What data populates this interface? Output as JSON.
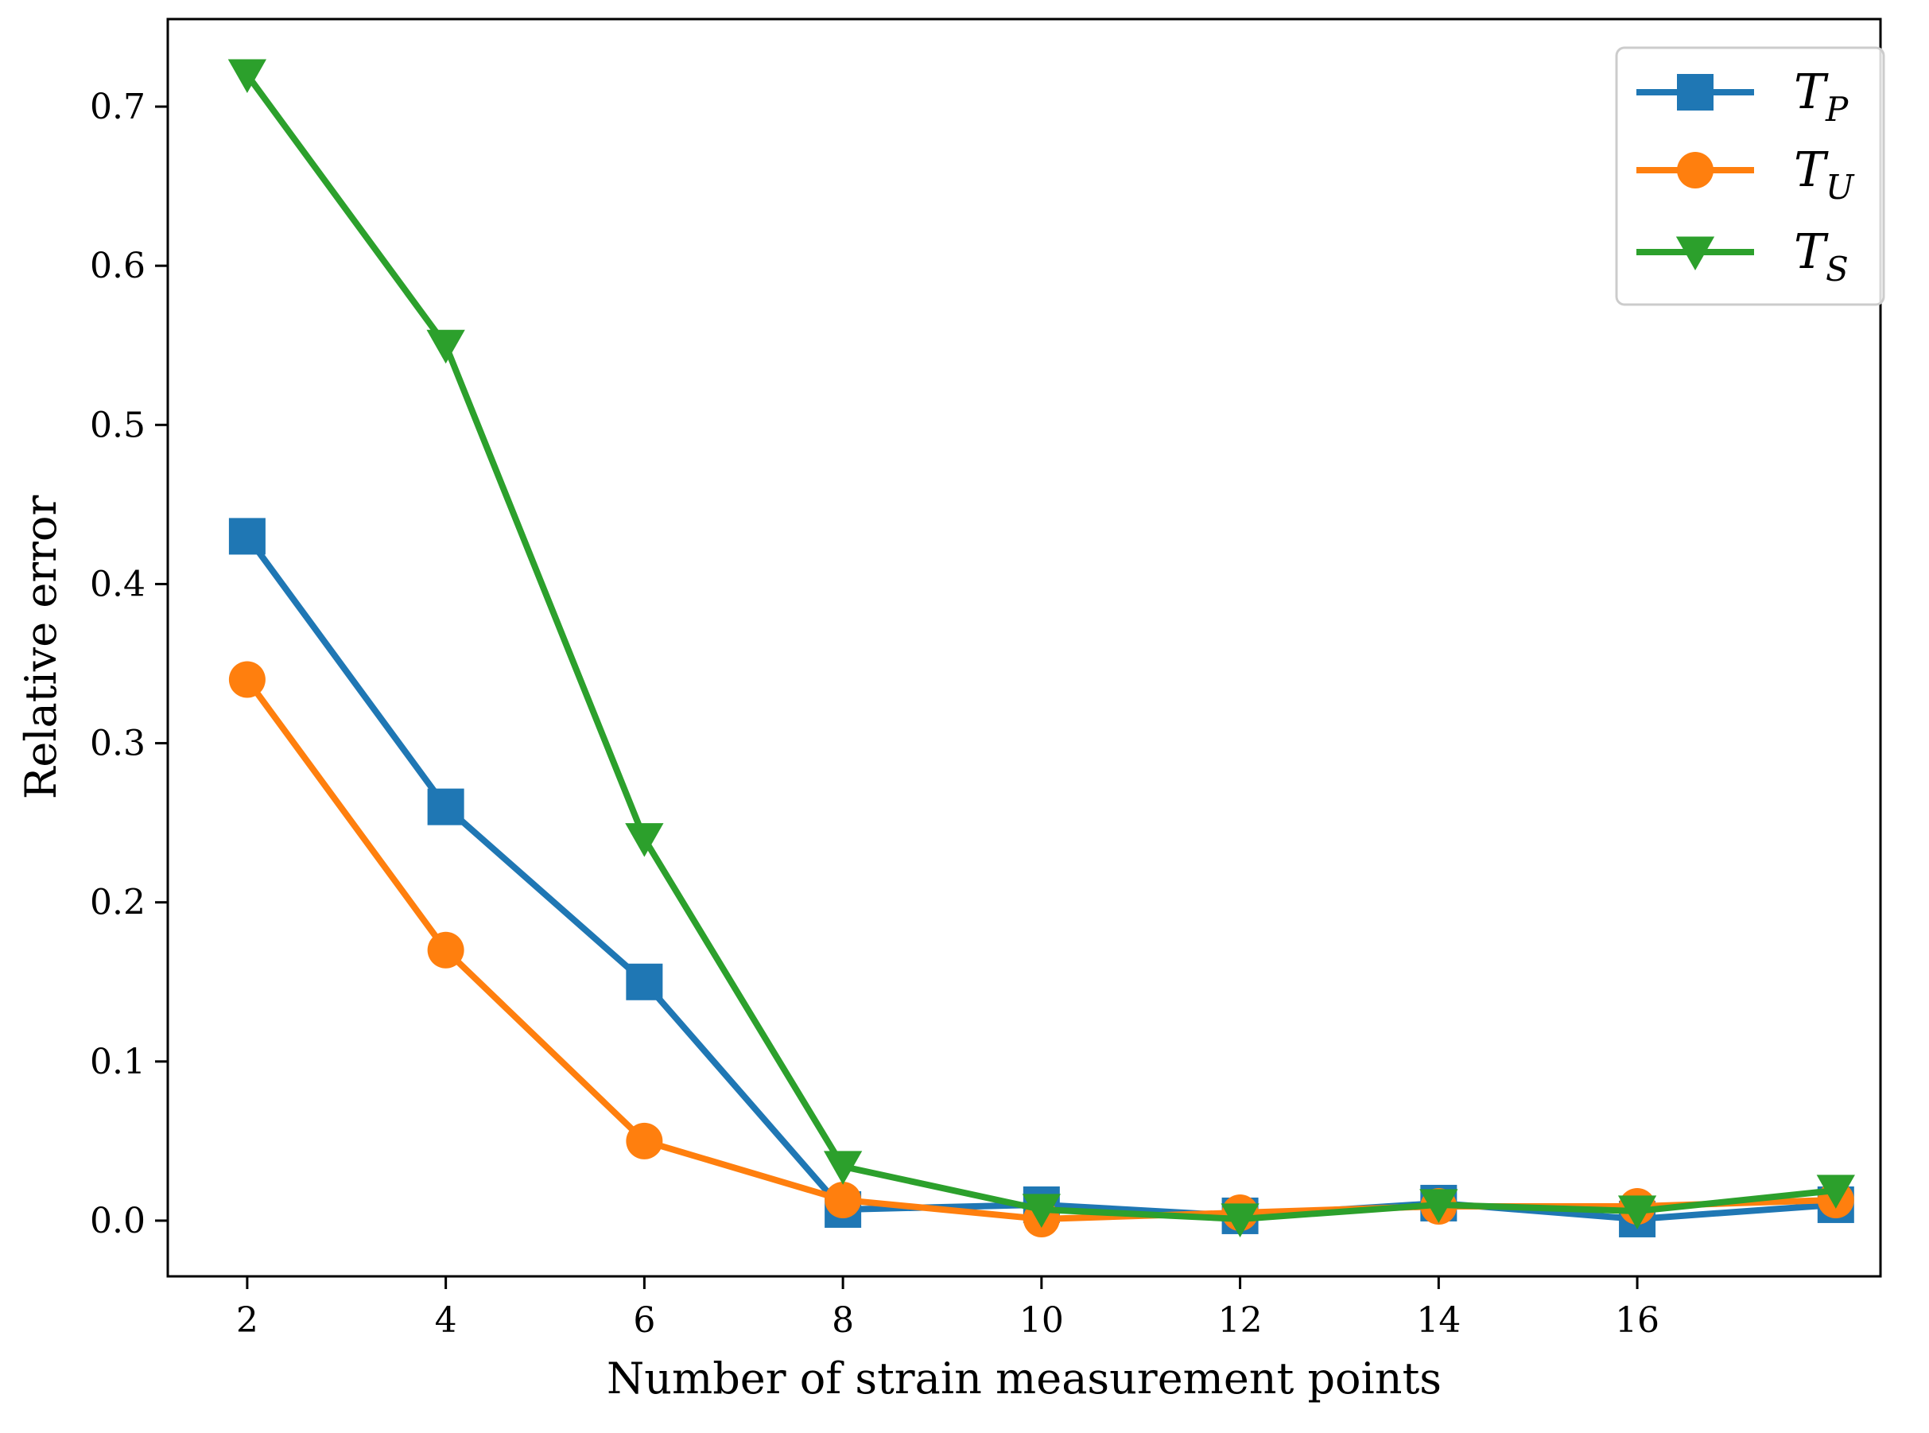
{
  "chart_data": {
    "type": "line",
    "title": "",
    "xlabel": "Number of strain measurement points",
    "ylabel": "Relative error",
    "x": [
      2,
      4,
      6,
      8,
      10,
      12,
      14,
      16,
      18
    ],
    "xticks": [
      2,
      4,
      6,
      8,
      10,
      12,
      14,
      16
    ],
    "xtick_labels": [
      "2",
      "4",
      "6",
      "8",
      "10",
      "12",
      "14",
      "16"
    ],
    "yticks": [
      0.0,
      0.1,
      0.2,
      0.3,
      0.4,
      0.5,
      0.6,
      0.7
    ],
    "ytick_labels": [
      "0.0",
      "0.1",
      "0.2",
      "0.3",
      "0.4",
      "0.5",
      "0.6",
      "0.7"
    ],
    "xlim": [
      1.2,
      18.45
    ],
    "ylim": [
      -0.035,
      0.755
    ],
    "grid": false,
    "legend_position": "top-right",
    "series": [
      {
        "name": "T_P",
        "legend_base": "T",
        "legend_sub": "P",
        "color": "#1f77b4",
        "marker": "square",
        "values": [
          0.43,
          0.26,
          0.15,
          0.007,
          0.01,
          0.003,
          0.011,
          0.001,
          0.01
        ]
      },
      {
        "name": "T_U",
        "legend_base": "T",
        "legend_sub": "U",
        "color": "#ff7f0e",
        "marker": "circle",
        "values": [
          0.34,
          0.17,
          0.05,
          0.013,
          0.001,
          0.005,
          0.009,
          0.009,
          0.013
        ]
      },
      {
        "name": "T_S",
        "legend_base": "T",
        "legend_sub": "S",
        "color": "#2ca02c",
        "marker": "triangle-down",
        "values": [
          0.72,
          0.55,
          0.24,
          0.034,
          0.007,
          0.001,
          0.01,
          0.006,
          0.019
        ]
      }
    ]
  }
}
